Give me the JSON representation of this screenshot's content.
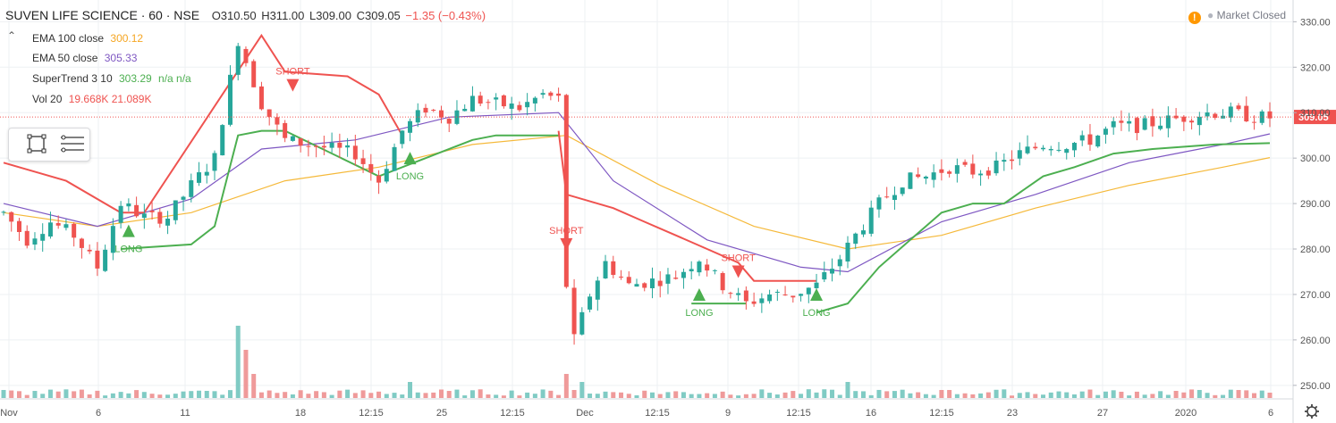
{
  "header": {
    "title": "SUVEN LIFE SCIENCE · 60 · NSE",
    "open": "O310.50",
    "high": "H311.00",
    "low": "L309.00",
    "close": "C309.05",
    "change": "−1.35 (−0.43%)"
  },
  "status": {
    "text": "Market Closed",
    "color": "#ff9800"
  },
  "legend": [
    {
      "label": "EMA 100 close",
      "value": "300.12",
      "color": "#f5b93a"
    },
    {
      "label": "EMA 50 close",
      "value": "305.33",
      "color": "#7e57c2"
    },
    {
      "label": "SuperTrend 3 10",
      "value": "303.29",
      "extra": "n/a n/a",
      "color": "#4caf50",
      "extra_color": "#ef5350"
    },
    {
      "label": "Vol 20",
      "value": "19.668K 21.089K",
      "color": "#ef5350"
    }
  ],
  "chart_data": {
    "type": "line",
    "title": "SUVEN LIFE SCIENCE · 60 · NSE",
    "ylim": [
      248,
      334
    ],
    "y_ticks": [
      "330.00",
      "320.00",
      "310.00",
      "300.00",
      "290.00",
      "280.00",
      "270.00",
      "260.00",
      "250.00"
    ],
    "y_tick_values": [
      330,
      320,
      310,
      300,
      290,
      280,
      270,
      260,
      250
    ],
    "x_ticks": [
      "Nov",
      "6",
      "11",
      "18",
      "12:15",
      "25",
      "12:15",
      "Dec",
      "12:15",
      "9",
      "12:15",
      "16",
      "12:15",
      "23",
      "27",
      "2020",
      "6"
    ],
    "last_price": "309.05",
    "last_price_value": 309.05,
    "price_path": [
      [
        0,
        288
      ],
      [
        3,
        282
      ],
      [
        6,
        286
      ],
      [
        9,
        283
      ],
      [
        12,
        276
      ],
      [
        15,
        290
      ],
      [
        18,
        287
      ],
      [
        21,
        287
      ],
      [
        24,
        294
      ],
      [
        27,
        300
      ],
      [
        30,
        326
      ],
      [
        33,
        312
      ],
      [
        36,
        304
      ],
      [
        39,
        303
      ],
      [
        42,
        302
      ],
      [
        45,
        301
      ],
      [
        48,
        295
      ],
      [
        51,
        306
      ],
      [
        54,
        311
      ],
      [
        57,
        309
      ],
      [
        60,
        313
      ],
      [
        63,
        312
      ],
      [
        66,
        311
      ],
      [
        69,
        314
      ],
      [
        71,
        313
      ],
      [
        72,
        272
      ],
      [
        73,
        260
      ],
      [
        75,
        270
      ],
      [
        77,
        277
      ],
      [
        80,
        272
      ],
      [
        83,
        273
      ],
      [
        86,
        274
      ],
      [
        89,
        278
      ],
      [
        92,
        272
      ],
      [
        95,
        268
      ],
      [
        98,
        270
      ],
      [
        101,
        270
      ],
      [
        104,
        272
      ],
      [
        107,
        278
      ],
      [
        109,
        283
      ],
      [
        112,
        290
      ],
      [
        115,
        295
      ],
      [
        118,
        296
      ],
      [
        121,
        298
      ],
      [
        124,
        297
      ],
      [
        127,
        298
      ],
      [
        130,
        301
      ],
      [
        133,
        303
      ],
      [
        136,
        303
      ],
      [
        139,
        304
      ],
      [
        142,
        307
      ],
      [
        145,
        307
      ],
      [
        148,
        308
      ],
      [
        151,
        309
      ],
      [
        154,
        310
      ],
      [
        157,
        310
      ],
      [
        160,
        309
      ],
      [
        162,
        309
      ]
    ],
    "ema100": [
      [
        0,
        288
      ],
      [
        12,
        285
      ],
      [
        24,
        288
      ],
      [
        36,
        295
      ],
      [
        48,
        298
      ],
      [
        60,
        303
      ],
      [
        72,
        305
      ],
      [
        84,
        294
      ],
      [
        96,
        285
      ],
      [
        108,
        280
      ],
      [
        120,
        283
      ],
      [
        132,
        289
      ],
      [
        144,
        294
      ],
      [
        156,
        298
      ],
      [
        162,
        300.12
      ]
    ],
    "ema50": [
      [
        0,
        290
      ],
      [
        12,
        285
      ],
      [
        24,
        291
      ],
      [
        33,
        302
      ],
      [
        45,
        304
      ],
      [
        57,
        309
      ],
      [
        71,
        310
      ],
      [
        78,
        295
      ],
      [
        90,
        282
      ],
      [
        102,
        276
      ],
      [
        108,
        275
      ],
      [
        120,
        286
      ],
      [
        132,
        292
      ],
      [
        144,
        299
      ],
      [
        156,
        303
      ],
      [
        162,
        305.33
      ]
    ],
    "supertrend_up": [
      [
        15,
        280
      ],
      [
        24,
        281
      ],
      [
        27,
        285
      ],
      [
        30,
        305
      ],
      [
        33,
        306
      ],
      [
        36,
        306
      ],
      [
        48,
        296
      ],
      [
        54,
        300
      ],
      [
        60,
        304
      ],
      [
        63,
        305
      ],
      [
        71,
        305
      ]
    ],
    "supertrend_up2": [
      [
        88,
        268
      ],
      [
        95,
        268
      ]
    ],
    "supertrend_up3": [
      [
        104,
        266
      ],
      [
        108,
        268
      ],
      [
        112,
        276
      ],
      [
        116,
        282
      ],
      [
        120,
        288
      ],
      [
        124,
        290
      ],
      [
        128,
        290
      ],
      [
        133,
        296
      ],
      [
        137,
        298
      ],
      [
        142,
        301
      ],
      [
        147,
        302
      ],
      [
        155,
        303
      ],
      [
        162,
        303.29
      ]
    ],
    "supertrend_down": [
      [
        0,
        299
      ],
      [
        8,
        295
      ],
      [
        15,
        288
      ],
      [
        18,
        288
      ],
      [
        33,
        327
      ],
      [
        36,
        319
      ],
      [
        44,
        318
      ],
      [
        48,
        314
      ],
      [
        51,
        305
      ]
    ],
    "supertrend_down2": [
      [
        71,
        306
      ],
      [
        72,
        292
      ],
      [
        78,
        289
      ],
      [
        82,
        286
      ],
      [
        86,
        283
      ],
      [
        90,
        280
      ],
      [
        94,
        277
      ],
      [
        96,
        273
      ],
      [
        104,
        273
      ]
    ],
    "signals": [
      {
        "type": "LONG",
        "x": 16,
        "price": 284
      },
      {
        "type": "SHORT",
        "x": 37,
        "price": 316
      },
      {
        "type": "LONG",
        "x": 52,
        "price": 300
      },
      {
        "type": "SHORT",
        "x": 72,
        "price": 281
      },
      {
        "type": "LONG",
        "x": 89,
        "price": 270
      },
      {
        "type": "SHORT",
        "x": 94,
        "price": 275
      },
      {
        "type": "LONG",
        "x": 104,
        "price": 270
      }
    ],
    "volume_spikes": [
      [
        0,
        1
      ],
      [
        30,
        9
      ],
      [
        31,
        6
      ],
      [
        32,
        3
      ],
      [
        52,
        2
      ],
      [
        72,
        3
      ],
      [
        73,
        1
      ],
      [
        74,
        2
      ],
      [
        108,
        2
      ],
      [
        120,
        1
      ]
    ],
    "colors": {
      "up": "#26a69a",
      "down": "#ef5350",
      "ema100": "#f5b93a",
      "ema50": "#7e57c2",
      "supertrend_up": "#4caf50",
      "supertrend_down": "#ef5350",
      "volume_up": "#80cbc4",
      "volume_down": "#ef9a9a",
      "grid": "#eef0f3"
    }
  }
}
